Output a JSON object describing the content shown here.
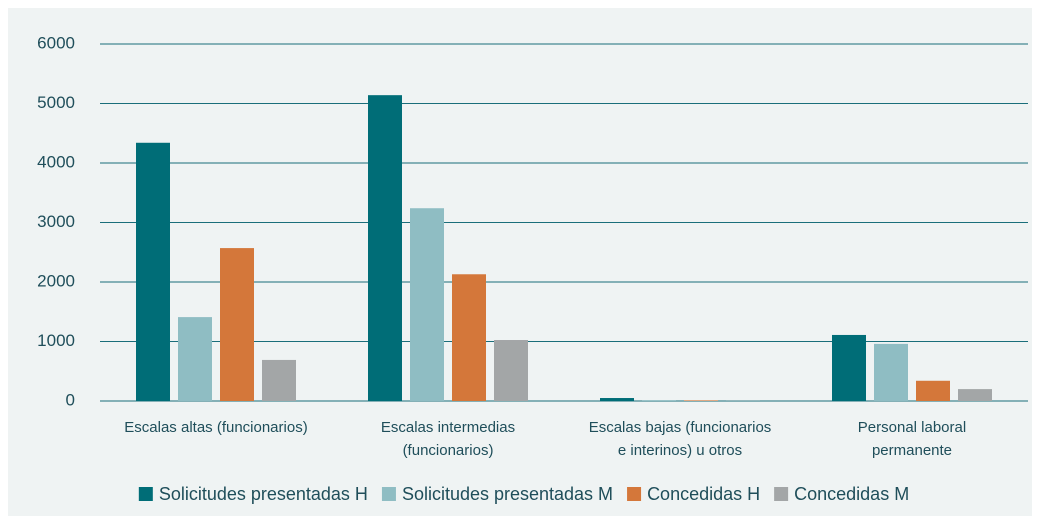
{
  "chart_data": {
    "type": "bar",
    "categories": [
      "Escalas altas (funcionarios)",
      "Escalas intermedias\n(funcionarios)",
      "Escalas bajas (funcionarios\ne interinos) u otros",
      "Personal laboral\npermanente"
    ],
    "series": [
      {
        "name": "Solicitudes presentadas H",
        "color": "#006d77",
        "values": [
          4340,
          5140,
          50,
          1110
        ]
      },
      {
        "name": "Solicitudes presentadas M",
        "color": "#8fbdc3",
        "values": [
          1410,
          3240,
          15,
          960
        ]
      },
      {
        "name": "Concedidas H",
        "color": "#d4773a",
        "values": [
          2570,
          2130,
          10,
          340
        ]
      },
      {
        "name": "Concedidas M",
        "color": "#a3a6a7",
        "values": [
          690,
          1025,
          2,
          200
        ]
      }
    ],
    "ylim": [
      0,
      6000
    ],
    "yticks": [
      0,
      1000,
      2000,
      3000,
      4000,
      5000,
      6000
    ],
    "grid": true
  }
}
